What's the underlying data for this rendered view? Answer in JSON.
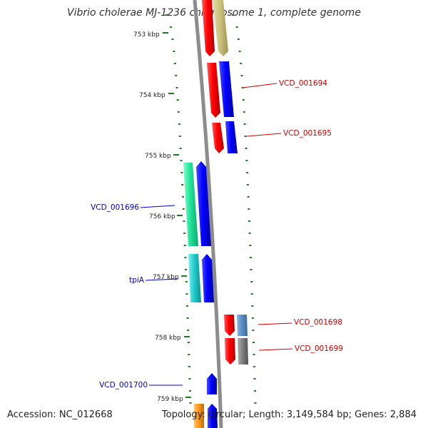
{
  "title": "Vibrio cholerae MJ-1236 chromosome 1, complete genome",
  "footer": {
    "accession": "Accession: NC_012668",
    "topology": "Topology: circular; Length: 3,149,584 bp; Genes: 2,884"
  },
  "colors": {
    "backbone": "#8c8c8c",
    "tick": "#1f7a1f",
    "label_forward": "#0000cc",
    "label_reverse": "#cc0000"
  },
  "scale_ticks": [
    "753 kbp",
    "754 kbp",
    "755 kbp",
    "756 kbp",
    "757 kbp",
    "758 kbp",
    "759 kbp"
  ],
  "gene_labels": [
    {
      "name": "VCD_001694",
      "strand": "reverse"
    },
    {
      "name": "VCD_001695",
      "strand": "reverse"
    },
    {
      "name": "VCD_001696",
      "strand": "forward"
    },
    {
      "name": "tpiA",
      "strand": "forward"
    },
    {
      "name": "VCD_001698",
      "strand": "reverse"
    },
    {
      "name": "VCD_001699",
      "strand": "reverse"
    },
    {
      "name": "VCD_001700",
      "strand": "forward"
    }
  ]
}
